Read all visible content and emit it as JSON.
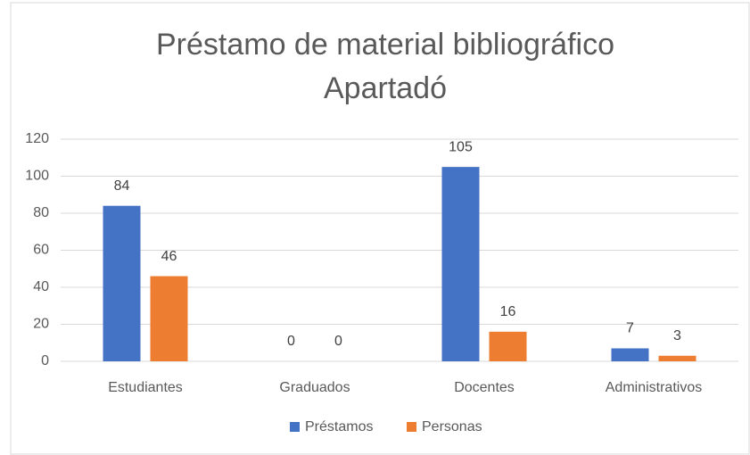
{
  "chart_data": {
    "type": "bar",
    "title": [
      "Préstamo de material bibliográfico",
      "Apartadó"
    ],
    "categories": [
      "Estudiantes",
      "Graduados",
      "Docentes",
      "Administrativos"
    ],
    "series": [
      {
        "name": "Préstamos",
        "color": "#4472c4",
        "values": [
          84,
          0,
          105,
          7
        ]
      },
      {
        "name": "Personas",
        "color": "#ed7d31",
        "values": [
          46,
          0,
          16,
          3
        ]
      }
    ],
    "ylim": [
      0,
      120
    ],
    "yticks": [
      0,
      20,
      40,
      60,
      80,
      100,
      120
    ],
    "grid": true,
    "legend": "bottom"
  }
}
